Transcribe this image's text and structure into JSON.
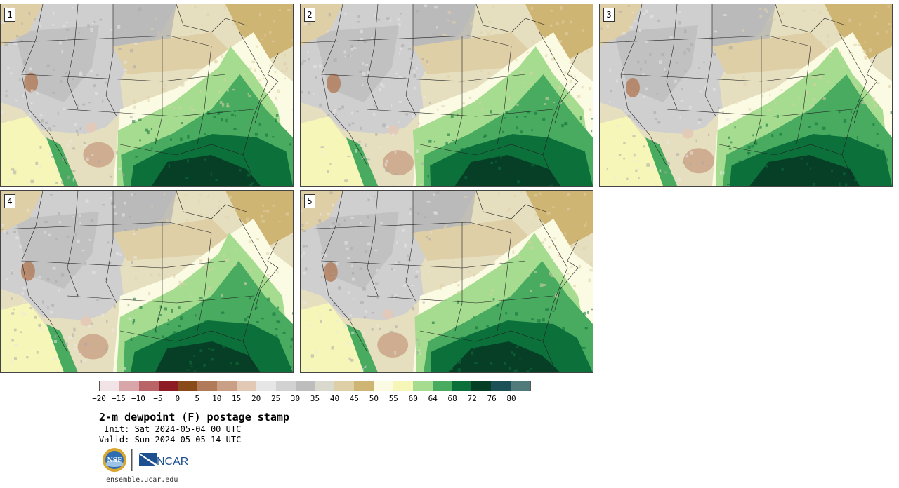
{
  "panels": [
    {
      "label": "1",
      "seed": 11
    },
    {
      "label": "2",
      "seed": 23
    },
    {
      "label": "3",
      "seed": 37
    },
    {
      "label": "4",
      "seed": 41
    },
    {
      "label": "5",
      "seed": 53
    }
  ],
  "colorbar": {
    "colors": [
      "#f2e4e6",
      "#d8a5a8",
      "#b96466",
      "#8e1c24",
      "#8a4b1b",
      "#b17a59",
      "#c9a086",
      "#e2c9b6",
      "#e6e6e6",
      "#d2d2d2",
      "#bdbdbd",
      "#d9d9cd",
      "#dfcfa7",
      "#cfb574",
      "#fbfbe3",
      "#f6f6b9",
      "#a5dc8f",
      "#48ab5f",
      "#0c703b",
      "#073f26",
      "#1d5158",
      "#517a7a"
    ],
    "ticks": [
      "−20",
      "−15",
      "−10",
      "−5",
      "0",
      "5",
      "10",
      "15",
      "20",
      "25",
      "30",
      "35",
      "40",
      "45",
      "50",
      "55",
      "60",
      "64",
      "68",
      "72",
      "76",
      "80"
    ]
  },
  "title": "2-m dewpoint (F) postage stamp",
  "init": " Init: Sat 2024-05-04 00 UTC",
  "valid": "Valid: Sun 2024-05-05 14 UTC",
  "logo_left": "NSF",
  "logo_right": "NCAR",
  "website": "ensemble.ucar.edu"
}
